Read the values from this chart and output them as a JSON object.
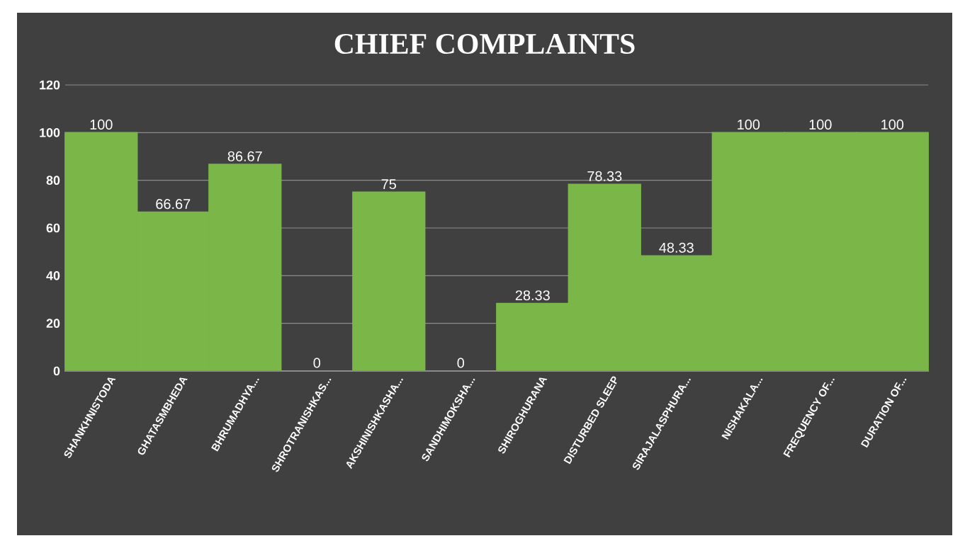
{
  "chart_data": {
    "type": "bar",
    "title": "CHIEF COMPLAINTS",
    "categories": [
      "SHANKHNISTODA",
      "GHATASMBHEDA",
      "BHRUMADHYA...",
      "SHROTRANISHKAS...",
      "AKSHINISHKASHA...",
      "SANDHIMOKSHA...",
      "SHIROGHURANA",
      "DISTURBED SLEEP",
      "SIRAJALASPHURA...",
      "NISHAKALA...",
      "FREQUENCY OF...",
      "DURATION OF..."
    ],
    "values": [
      100,
      66.67,
      86.67,
      0,
      75,
      0,
      28.33,
      78.33,
      48.33,
      100,
      100,
      100
    ],
    "value_labels": [
      "100",
      "66.67",
      "86.67",
      "0",
      "75",
      "0",
      "28.33",
      "78.33",
      "48.33",
      "100",
      "100",
      "100"
    ],
    "color": "#7ab648",
    "ylim": [
      0,
      120
    ],
    "yticks": [
      0,
      20,
      40,
      60,
      80,
      100,
      120
    ],
    "grid": "y"
  }
}
